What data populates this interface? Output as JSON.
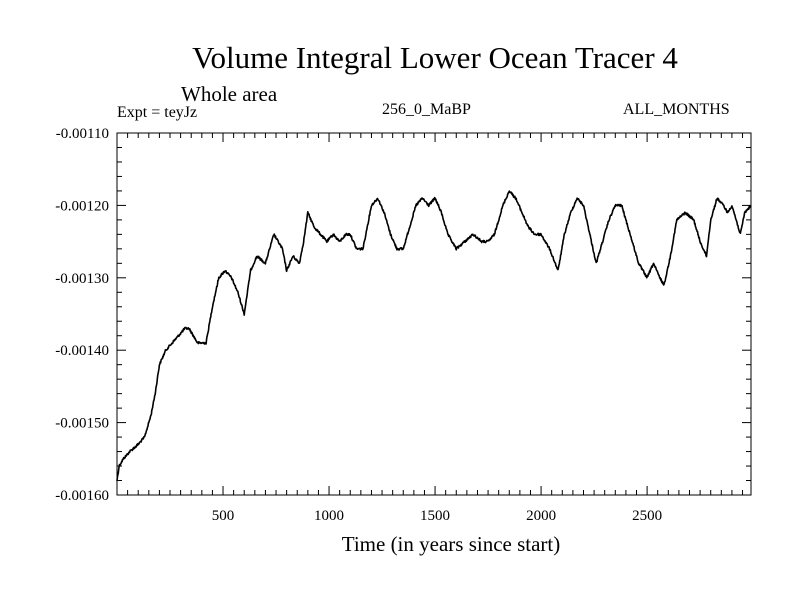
{
  "chart_data": {
    "type": "line",
    "title": "Volume Integral Lower Ocean Tracer 4",
    "subtitle": "Whole area",
    "experiment_label": "Expt = teyJz",
    "center_label": "256_0_MaBP",
    "right_label": "ALL_MONTHS",
    "xlabel": "Time (in years since start)",
    "ylabel": "",
    "xlim": [
      0,
      2990
    ],
    "ylim": [
      -0.0016,
      -0.0011
    ],
    "x_ticks": [
      500,
      1000,
      1500,
      2000,
      2500
    ],
    "x_tick_labels": [
      "500",
      "1000",
      "1500",
      "2000",
      "2500"
    ],
    "y_ticks": [
      -0.0011,
      -0.0012,
      -0.0013,
      -0.0014,
      -0.0015,
      -0.0016
    ],
    "y_tick_labels": [
      "-0.00110",
      "-0.00120",
      "-0.00130",
      "-0.00140",
      "-0.00150",
      "-0.00160"
    ],
    "grid": false,
    "series": [
      {
        "name": "Lower Ocean Tracer 4",
        "x": [
          0,
          10,
          30,
          60,
          100,
          130,
          160,
          180,
          200,
          230,
          260,
          290,
          320,
          340,
          360,
          380,
          400,
          420,
          450,
          480,
          510,
          540,
          570,
          600,
          630,
          660,
          700,
          740,
          780,
          800,
          830,
          860,
          880,
          900,
          930,
          960,
          990,
          1020,
          1050,
          1080,
          1100,
          1130,
          1160,
          1200,
          1230,
          1260,
          1290,
          1320,
          1350,
          1380,
          1410,
          1440,
          1470,
          1500,
          1530,
          1560,
          1600,
          1640,
          1680,
          1720,
          1750,
          1780,
          1820,
          1850,
          1880,
          1910,
          1940,
          1970,
          2000,
          2040,
          2080,
          2110,
          2140,
          2170,
          2200,
          2230,
          2260,
          2290,
          2320,
          2350,
          2380,
          2420,
          2460,
          2500,
          2530,
          2560,
          2580,
          2610,
          2640,
          2680,
          2720,
          2750,
          2780,
          2800,
          2830,
          2860,
          2880,
          2900,
          2920,
          2940,
          2960,
          2990
        ],
        "y": [
          -0.00158,
          -0.00156,
          -0.00155,
          -0.00154,
          -0.00153,
          -0.00152,
          -0.00149,
          -0.00146,
          -0.00142,
          -0.0014,
          -0.00139,
          -0.00138,
          -0.00137,
          -0.00137,
          -0.00138,
          -0.00139,
          -0.00139,
          -0.00139,
          -0.00134,
          -0.0013,
          -0.00129,
          -0.0013,
          -0.00132,
          -0.00135,
          -0.00129,
          -0.00127,
          -0.00128,
          -0.00124,
          -0.00126,
          -0.00129,
          -0.00127,
          -0.00128,
          -0.00125,
          -0.00121,
          -0.00123,
          -0.00124,
          -0.00125,
          -0.00124,
          -0.00125,
          -0.00124,
          -0.00124,
          -0.00126,
          -0.00126,
          -0.0012,
          -0.00119,
          -0.00121,
          -0.00124,
          -0.00126,
          -0.00126,
          -0.00123,
          -0.0012,
          -0.00119,
          -0.0012,
          -0.00119,
          -0.00121,
          -0.00124,
          -0.00126,
          -0.00125,
          -0.00124,
          -0.00125,
          -0.00125,
          -0.00124,
          -0.0012,
          -0.00118,
          -0.00119,
          -0.00121,
          -0.00123,
          -0.00124,
          -0.00124,
          -0.00126,
          -0.00129,
          -0.00124,
          -0.00121,
          -0.00119,
          -0.0012,
          -0.00124,
          -0.00128,
          -0.00125,
          -0.00122,
          -0.0012,
          -0.0012,
          -0.00124,
          -0.00128,
          -0.0013,
          -0.00128,
          -0.0013,
          -0.00131,
          -0.00127,
          -0.00122,
          -0.00121,
          -0.00122,
          -0.00125,
          -0.00127,
          -0.00122,
          -0.00119,
          -0.0012,
          -0.00121,
          -0.0012,
          -0.00122,
          -0.00124,
          -0.00121,
          -0.0012
        ]
      }
    ]
  }
}
